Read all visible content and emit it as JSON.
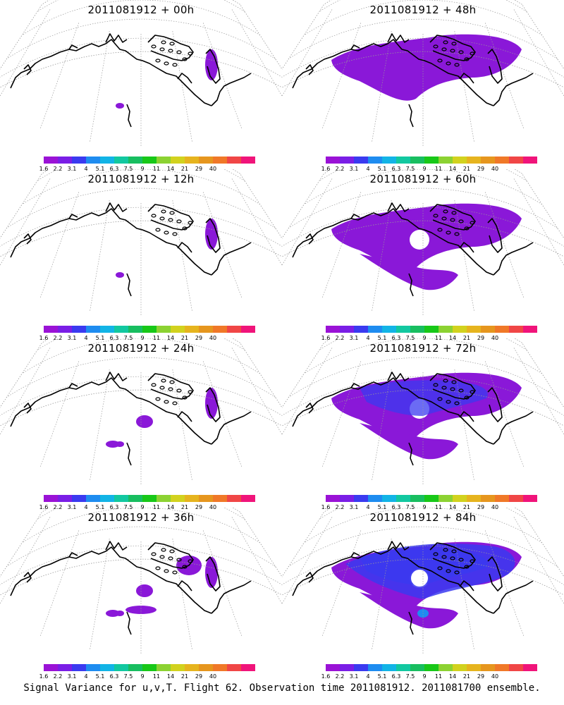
{
  "panels": [
    {
      "title": "2011081912 + 00h",
      "blobs": []
    },
    {
      "title": "2011081912 + 48h",
      "blobs": [
        "large-band"
      ]
    },
    {
      "title": "2011081912 + 12h",
      "blobs": []
    },
    {
      "title": "2011081912 + 60h",
      "blobs": [
        "large-ring"
      ]
    },
    {
      "title": "2011081912 + 24h",
      "blobs": []
    },
    {
      "title": "2011081912 + 72h",
      "blobs": [
        "large-ring-blue"
      ]
    },
    {
      "title": "2011081912 + 36h",
      "blobs": []
    },
    {
      "title": "2011081912 + 84h",
      "blobs": [
        "large-ring-bluer"
      ]
    }
  ],
  "colorbar": {
    "colors": [
      "#9a12d6",
      "#7a1ee6",
      "#3a3af0",
      "#1e8cf0",
      "#12b4e6",
      "#12c8a0",
      "#18be60",
      "#18c818",
      "#8cd232",
      "#d2d21e",
      "#e6b41e",
      "#e6961e",
      "#f07828",
      "#f04646",
      "#f0147a"
    ],
    "labels": [
      "1.6",
      "2.2",
      "3.1",
      "4",
      "5.1",
      "6.3",
      "7.5",
      "9",
      "11",
      "14",
      "21",
      "29",
      "40"
    ]
  },
  "footer": "Signal Variance for u,v,T. Flight 62. Observation time 2011081912. 2011081700 ensemble."
}
